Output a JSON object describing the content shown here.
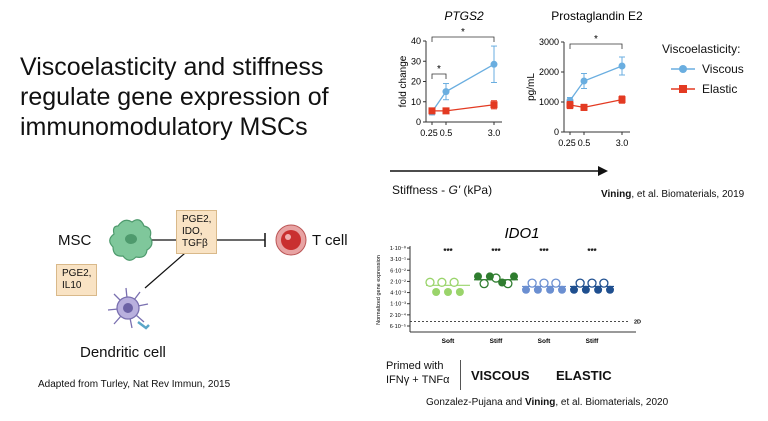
{
  "title": {
    "lines": [
      "Viscoelasticity and stiffness",
      "regulate gene expression of",
      "immunomodulatory MSCs"
    ]
  },
  "schematic": {
    "msc_label": "MSC",
    "tcell_label": "T cell",
    "dc_label": "Dendritic cell",
    "box_top_line1": "PGE2, IDO,",
    "box_top_line2": "TGFβ",
    "box_left": "PGE2, IL10",
    "citation": "Adapted from Turley, Nat Rev Immun, 2015"
  },
  "stiffness_axis": {
    "label_prefix": "Stiffness - ",
    "label_g": "G'",
    "label_suffix": " (kPa)"
  },
  "citation_2019": {
    "bold": "Vining",
    "rest": ", et al. Biomaterials, 2019"
  },
  "citation_2020": {
    "pre": "Gonzalez-Pujana and ",
    "bold": "Vining",
    "rest": ", et al. Biomaterials, 2020"
  },
  "legend": {
    "title": "Viscoelasticity:",
    "items": [
      {
        "label": "Viscous",
        "color": "#6aaee0"
      },
      {
        "label": "Elastic",
        "color": "#e33a22"
      }
    ]
  },
  "ido": {
    "primed_line1": "Primed with",
    "primed_line2": "IFNγ + TNFα",
    "viscous_label": "VISCOUS",
    "elastic_label": "ELASTIC"
  },
  "chart_data": [
    {
      "type": "line",
      "title": "PTGS2",
      "ylabel": "fold change",
      "x": [
        0.25,
        0.5,
        3.0
      ],
      "x_ticks": [
        "0.25",
        "0.5",
        "3.0"
      ],
      "ylim": [
        0,
        40
      ],
      "y_ticks": [
        "0",
        "10",
        "20",
        "30",
        "40"
      ],
      "series": [
        {
          "name": "Viscous",
          "color": "#6aaee0",
          "values": [
            5,
            15,
            28.5
          ],
          "err": [
            1.5,
            4,
            9
          ]
        },
        {
          "name": "Elastic",
          "color": "#e33a22",
          "values": [
            5.5,
            5.5,
            8.5
          ],
          "err": [
            1,
            1,
            2
          ]
        }
      ],
      "significance": [
        "*",
        "*"
      ]
    },
    {
      "type": "line",
      "title": "Prostaglandin E2",
      "ylabel": "pg/mL",
      "x": [
        0.25,
        0.5,
        3.0
      ],
      "x_ticks": [
        "0.25",
        "0.5",
        "3.0"
      ],
      "ylim": [
        0,
        3000
      ],
      "y_ticks": [
        "0",
        "1000",
        "2000",
        "3000"
      ],
      "series": [
        {
          "name": "Viscous",
          "color": "#6aaee0",
          "values": [
            1050,
            1700,
            2200
          ],
          "err": [
            100,
            250,
            300
          ]
        },
        {
          "name": "Elastic",
          "color": "#e33a22",
          "values": [
            900,
            820,
            1080
          ],
          "err": [
            120,
            100,
            120
          ]
        }
      ],
      "significance": [
        "*"
      ]
    },
    {
      "type": "scatter",
      "title": "IDO1",
      "ylabel": "Normalized gene expression",
      "y_ticks": [
        "1·10⁻⁰",
        "3·10⁻¹",
        "6·10⁻²",
        "2·10⁻²",
        "4·10⁻³",
        "1·10⁻³",
        "2·10⁻⁴",
        "6·10⁻⁵"
      ],
      "categories": [
        "Soft",
        "Stiff",
        "Soft",
        "Stiff"
      ],
      "reference_label": "2D",
      "significance": [
        "***",
        "***",
        "***",
        "***"
      ],
      "groups": [
        {
          "category": "Soft",
          "color": "#9ad46b",
          "open": [
            [
              0.0,
              3.08
            ],
            [
              0.33,
              3.08
            ],
            [
              0.67,
              3.08
            ]
          ],
          "filled": [
            [
              0.17,
              3.95
            ],
            [
              0.5,
              3.95
            ],
            [
              0.83,
              3.95
            ]
          ],
          "mean_tick": 3.35
        },
        {
          "category": "Stiff",
          "color": "#2f7d2f",
          "open": [
            [
              0.17,
              3.2
            ],
            [
              0.5,
              2.7
            ],
            [
              0.83,
              3.2
            ]
          ],
          "filled": [
            [
              0.0,
              2.55
            ],
            [
              0.33,
              2.55
            ],
            [
              0.67,
              3.1
            ],
            [
              1.0,
              2.55
            ]
          ],
          "mean_tick": 2.85
        },
        {
          "category": "Soft",
          "color": "#6b8fd1",
          "open": [
            [
              0.17,
              3.15
            ],
            [
              0.5,
              3.15
            ],
            [
              0.83,
              3.15
            ]
          ],
          "filled": [
            [
              0.0,
              3.75
            ],
            [
              0.33,
              3.75
            ],
            [
              0.67,
              3.75
            ],
            [
              1.0,
              3.75
            ]
          ],
          "mean_tick": 3.45
        },
        {
          "category": "Stiff",
          "color": "#1f4f8f",
          "open": [
            [
              0.17,
              3.15
            ],
            [
              0.5,
              3.15
            ],
            [
              0.83,
              3.15
            ]
          ],
          "filled": [
            [
              0.0,
              3.75
            ],
            [
              0.33,
              3.75
            ],
            [
              0.67,
              3.75
            ],
            [
              1.0,
              3.75
            ]
          ],
          "mean_tick": 3.45
        }
      ]
    }
  ]
}
